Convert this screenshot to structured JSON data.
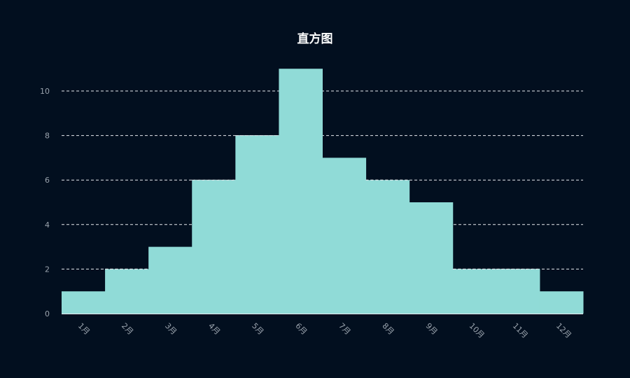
{
  "chart_data": {
    "type": "bar",
    "title": "直方图",
    "categories": [
      "1月",
      "2月",
      "3月",
      "4月",
      "5月",
      "6月",
      "7月",
      "8月",
      "9月",
      "10月",
      "11月",
      "12月"
    ],
    "values": [
      1,
      2,
      3,
      6,
      8,
      11,
      7,
      6,
      5,
      2,
      2,
      1
    ],
    "ylim": [
      0,
      11
    ],
    "yticks": [
      0,
      2,
      4,
      6,
      8,
      10
    ],
    "grid": true,
    "legend": "none",
    "colors": {
      "background": "#020f1f",
      "bar": "#90dbd7",
      "grid": "#e6e9ee",
      "tick_text": "#9aa3ad",
      "title": "#ffffff"
    }
  }
}
